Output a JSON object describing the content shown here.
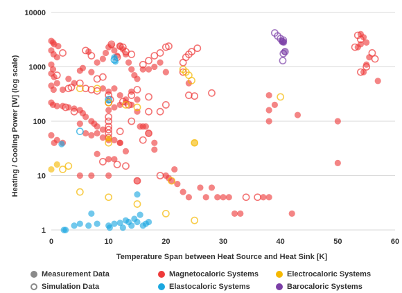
{
  "chart_data": {
    "type": "scatter",
    "xlabel": "Temperature Span between Heat Source and Heat Sink [K]",
    "ylabel": "Heating / Cooling Power [W] (log scale)",
    "x_ticks": [
      "0",
      "10",
      "20",
      "30",
      "40",
      "50",
      "60"
    ],
    "y_ticks": [
      "1",
      "10",
      "100",
      "1000",
      "10000"
    ],
    "xlim": [
      0,
      60
    ],
    "ylim": [
      1,
      10000
    ],
    "y_scale": "log",
    "grid": "horizontal",
    "legend_position": "bottom",
    "colors": {
      "magnetocaloric": "#ee3a3a",
      "elastocaloric": "#1aa7e0",
      "electrocaloric": "#f5b800",
      "barocaloric": "#7b3fa6"
    },
    "legend": {
      "measurement": "Measurement Data",
      "simulation": "Simulation Data",
      "magnetocaloric": "Magnetocaloric Systems",
      "elastocaloric": "Elastocaloric Systems",
      "electrocaloric": "Electrocaloric Systems",
      "barocaloric": "Barocaloric Systems"
    },
    "series": [
      {
        "name": "Magnetocaloric Systems",
        "key": "magnetocaloric",
        "measurement": [
          [
            0,
            3000
          ],
          [
            0.3,
            2800
          ],
          [
            0.5,
            2600
          ],
          [
            1.2,
            2400
          ],
          [
            0,
            2000
          ],
          [
            0.4,
            1700
          ],
          [
            1,
            1500
          ],
          [
            0,
            1100
          ],
          [
            0.3,
            900
          ],
          [
            0,
            750
          ],
          [
            0.5,
            650
          ],
          [
            1,
            500
          ],
          [
            0,
            450
          ],
          [
            0.4,
            380
          ],
          [
            2,
            380
          ],
          [
            3,
            600
          ],
          [
            4,
            500
          ],
          [
            5,
            850
          ],
          [
            5.5,
            950
          ],
          [
            6.5,
            1900
          ],
          [
            7,
            800
          ],
          [
            8,
            1200
          ],
          [
            9,
            1400
          ],
          [
            9.5,
            1800
          ],
          [
            10,
            2300
          ],
          [
            10.5,
            2500
          ],
          [
            11,
            2000
          ],
          [
            11.5,
            1600
          ],
          [
            12,
            2400
          ],
          [
            12.5,
            2100
          ],
          [
            13,
            1700
          ],
          [
            13.5,
            1200
          ],
          [
            14,
            900
          ],
          [
            14.5,
            700
          ],
          [
            15,
            600
          ],
          [
            16,
            900
          ],
          [
            9,
            400
          ],
          [
            10,
            350
          ],
          [
            11,
            400
          ],
          [
            12,
            300
          ],
          [
            13,
            250
          ],
          [
            14,
            350
          ],
          [
            15,
            250
          ],
          [
            0,
            220
          ],
          [
            0.3,
            200
          ],
          [
            1,
            190
          ],
          [
            2,
            190
          ],
          [
            3,
            180
          ],
          [
            4,
            170
          ],
          [
            5,
            160
          ],
          [
            5.5,
            140
          ],
          [
            6,
            120
          ],
          [
            7,
            100
          ],
          [
            7.5,
            90
          ],
          [
            8,
            80
          ],
          [
            9,
            70
          ],
          [
            10,
            160
          ],
          [
            11,
            180
          ],
          [
            12,
            200
          ],
          [
            13,
            220
          ],
          [
            14,
            200
          ],
          [
            15,
            150
          ],
          [
            16,
            80
          ],
          [
            15.5,
            80
          ],
          [
            16.5,
            80
          ],
          [
            17,
            60
          ],
          [
            18,
            40
          ],
          [
            18,
            30
          ],
          [
            12,
            40
          ],
          [
            13,
            28
          ],
          [
            0,
            55
          ],
          [
            1,
            45
          ],
          [
            0.5,
            40
          ],
          [
            2,
            40
          ],
          [
            5,
            90
          ],
          [
            6,
            60
          ],
          [
            7,
            55
          ],
          [
            8,
            60
          ],
          [
            9,
            50
          ],
          [
            10,
            45
          ],
          [
            11,
            45
          ],
          [
            12,
            40
          ],
          [
            8,
            25
          ],
          [
            10,
            20
          ],
          [
            11,
            20
          ],
          [
            5,
            10
          ],
          [
            7,
            10
          ],
          [
            10,
            10
          ],
          [
            15,
            8
          ],
          [
            20,
            10
          ],
          [
            20.5,
            9
          ],
          [
            21,
            8
          ],
          [
            21.5,
            13
          ],
          [
            22,
            7
          ],
          [
            23,
            5
          ],
          [
            24,
            4
          ],
          [
            26,
            6
          ],
          [
            27,
            4
          ],
          [
            28,
            6
          ],
          [
            29,
            4
          ],
          [
            30,
            4
          ],
          [
            31,
            4
          ],
          [
            32,
            2
          ],
          [
            33,
            2
          ],
          [
            37,
            4
          ],
          [
            38,
            4
          ],
          [
            42,
            2
          ],
          [
            38,
            300
          ],
          [
            38,
            160
          ],
          [
            38,
            100
          ],
          [
            39,
            200
          ],
          [
            43,
            130
          ],
          [
            50,
            100
          ],
          [
            50,
            17
          ],
          [
            54,
            4000
          ],
          [
            54.5,
            3500
          ],
          [
            55,
            2800
          ],
          [
            53.5,
            2300
          ],
          [
            54,
            2600
          ],
          [
            55.5,
            1500
          ],
          [
            55,
            1100
          ],
          [
            57,
            550
          ],
          [
            54.5,
            800
          ],
          [
            24,
            500
          ],
          [
            20,
            800
          ],
          [
            18,
            1000
          ],
          [
            19,
            1200
          ],
          [
            17,
            900
          ]
        ],
        "simulation": [
          [
            2,
            1800
          ],
          [
            6,
            2000
          ],
          [
            7,
            1600
          ],
          [
            10.5,
            2600
          ],
          [
            12.5,
            2300
          ],
          [
            13,
            1900
          ],
          [
            14,
            1700
          ],
          [
            16,
            1100
          ],
          [
            17,
            1300
          ],
          [
            18,
            1600
          ],
          [
            19,
            1800
          ],
          [
            20,
            2300
          ],
          [
            20.5,
            2400
          ],
          [
            23,
            1200
          ],
          [
            23.5,
            1500
          ],
          [
            24,
            1700
          ],
          [
            24.5,
            1900
          ],
          [
            25.5,
            2200
          ],
          [
            12,
            2400
          ],
          [
            11.5,
            1500
          ],
          [
            1,
            700
          ],
          [
            3,
            400
          ],
          [
            3.5,
            420
          ],
          [
            6,
            400
          ],
          [
            7,
            380
          ],
          [
            8,
            360
          ],
          [
            10,
            300
          ],
          [
            10.3,
            250
          ],
          [
            10,
            100
          ],
          [
            10,
            80
          ],
          [
            10,
            60
          ],
          [
            10,
            50
          ],
          [
            12,
            65
          ],
          [
            12.5,
            230
          ],
          [
            13.5,
            200
          ],
          [
            15,
            380
          ],
          [
            17,
            280
          ],
          [
            17,
            150
          ],
          [
            20,
            200
          ],
          [
            19,
            150
          ],
          [
            24,
            300
          ],
          [
            25,
            290
          ],
          [
            28,
            330
          ],
          [
            14,
            100
          ],
          [
            4,
            150
          ],
          [
            2.5,
            180
          ],
          [
            14,
            300
          ],
          [
            9,
            18
          ],
          [
            11.5,
            16
          ],
          [
            15,
            8
          ],
          [
            19,
            10
          ],
          [
            34,
            4
          ],
          [
            36,
            4
          ],
          [
            53.5,
            3800
          ],
          [
            54,
            3200
          ],
          [
            53,
            2300
          ],
          [
            56,
            1800
          ],
          [
            56.5,
            1400
          ],
          [
            55,
            1000
          ],
          [
            54,
            800
          ],
          [
            17,
            60
          ],
          [
            23,
            800
          ],
          [
            13,
            15
          ],
          [
            16,
            45
          ],
          [
            5,
            500
          ],
          [
            8,
            600
          ],
          [
            9,
            650
          ],
          [
            10,
            220
          ],
          [
            10,
            120
          ],
          [
            10,
            70
          ]
        ]
      },
      {
        "name": "Elastocaloric Systems",
        "key": "elastocaloric",
        "measurement": [
          [
            1.8,
            38
          ],
          [
            2.2,
            1
          ],
          [
            2.5,
            1
          ],
          [
            4,
            1.2
          ],
          [
            5,
            1.3
          ],
          [
            6.5,
            1.2
          ],
          [
            7,
            2
          ],
          [
            8,
            1.3
          ],
          [
            10,
            1.2
          ],
          [
            10.2,
            1.1
          ],
          [
            11,
            1.3
          ],
          [
            12,
            1.35
          ],
          [
            12.5,
            1.1
          ],
          [
            13,
            1.5
          ],
          [
            13.5,
            1.4
          ],
          [
            14,
            1.2
          ],
          [
            14.5,
            1.6
          ],
          [
            15,
            1.4
          ],
          [
            15.5,
            1.9
          ],
          [
            16,
            1.2
          ],
          [
            16.5,
            1.3
          ],
          [
            17,
            1.4
          ],
          [
            15,
            4.5
          ],
          [
            11,
            1500
          ],
          [
            11.2,
            1250
          ],
          [
            10,
            240
          ]
        ],
        "simulation": [
          [
            5,
            65
          ],
          [
            10,
            250
          ],
          [
            11,
            1350
          ]
        ]
      },
      {
        "name": "Electrocaloric Systems",
        "key": "electrocaloric",
        "measurement": [
          [
            0,
            13
          ],
          [
            1,
            16
          ],
          [
            10,
            48
          ],
          [
            25,
            40
          ]
        ],
        "simulation": [
          [
            2,
            13
          ],
          [
            3,
            15
          ],
          [
            5,
            5
          ],
          [
            10,
            4
          ],
          [
            15,
            3
          ],
          [
            20,
            2
          ],
          [
            25,
            1.5
          ],
          [
            10,
            40
          ],
          [
            25,
            40
          ],
          [
            21,
            8
          ],
          [
            23,
            900
          ],
          [
            23.5,
            800
          ],
          [
            24,
            700
          ],
          [
            24.5,
            560
          ],
          [
            5,
            400
          ],
          [
            8,
            400
          ],
          [
            10,
            220
          ],
          [
            13,
            200
          ],
          [
            15,
            180
          ],
          [
            40,
            280
          ]
        ]
      },
      {
        "name": "Barocaloric Systems",
        "key": "barocaloric",
        "measurement": [
          [
            40.2,
            3000
          ],
          [
            40.4,
            2900
          ],
          [
            40.6,
            2800
          ],
          [
            40.7,
            1900
          ]
        ],
        "simulation": [
          [
            39,
            4200
          ],
          [
            39.5,
            3700
          ],
          [
            40,
            3300
          ],
          [
            40.5,
            3100
          ],
          [
            40.4,
            2900
          ],
          [
            40.8,
            1900
          ],
          [
            40.5,
            1750
          ],
          [
            40.4,
            1300
          ]
        ]
      }
    ]
  }
}
